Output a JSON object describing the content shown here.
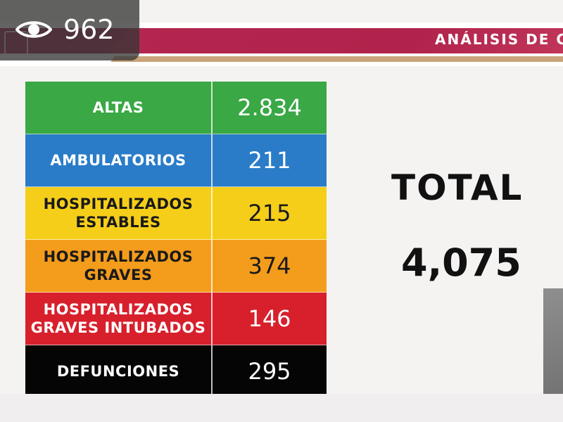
{
  "overlay": {
    "views_count": "962",
    "views_icon": "eye-icon"
  },
  "header": {
    "title": "ANÁLISIS DE C",
    "accent_color": "#b3264f",
    "gold_color": "#c9a37a"
  },
  "table": {
    "rows": [
      {
        "label": "ALTAS",
        "value": "2.834",
        "color": "#39a845",
        "text_color": "#ffffff"
      },
      {
        "label": "AMBULATORIOS",
        "value": "211",
        "color": "#2a7cc8",
        "text_color": "#ffffff"
      },
      {
        "label": "HOSPITALIZADOS\nESTABLES",
        "value": "215",
        "color": "#f5ce1a",
        "text_color": "#1a1a1a"
      },
      {
        "label": "HOSPITALIZADOS\nGRAVES",
        "value": "374",
        "color": "#f49c1c",
        "text_color": "#1a1a1a"
      },
      {
        "label": "HOSPITALIZADOS\nGRAVES INTUBADOS",
        "value": "146",
        "color": "#d7202c",
        "text_color": "#ffffff"
      },
      {
        "label": "DEFUNCIONES",
        "value": "295",
        "color": "#050505",
        "text_color": "#ffffff"
      }
    ]
  },
  "total": {
    "label": "TOTAL",
    "value": "4,075"
  }
}
